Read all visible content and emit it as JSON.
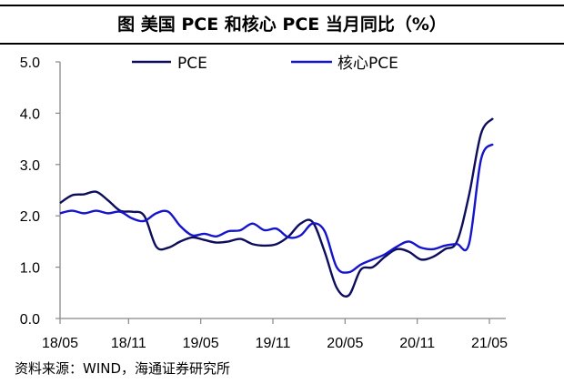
{
  "title": "图  美国 PCE 和核心 PCE 当月同比（%）",
  "source": "资料来源：WIND，海通证券研究所",
  "chart_data": {
    "type": "line",
    "title": "图  美国 PCE 和核心 PCE 当月同比（%）",
    "xlabel": "",
    "ylabel": "",
    "ylim": [
      0,
      5
    ],
    "yticks": [
      "0.0",
      "1.0",
      "2.0",
      "3.0",
      "4.0",
      "5.0"
    ],
    "xticks": [
      "18/05",
      "18/11",
      "19/05",
      "19/11",
      "20/05",
      "20/11",
      "21/05"
    ],
    "grid": false,
    "legend": "top",
    "x": [
      "18/05",
      "18/06",
      "18/07",
      "18/08",
      "18/09",
      "18/10",
      "18/11",
      "18/12",
      "19/01",
      "19/02",
      "19/03",
      "19/04",
      "19/05",
      "19/06",
      "19/07",
      "19/08",
      "19/09",
      "19/10",
      "19/11",
      "19/12",
      "20/01",
      "20/02",
      "20/03",
      "20/04",
      "20/05",
      "20/06",
      "20/07",
      "20/08",
      "20/09",
      "20/10",
      "20/11",
      "20/12",
      "21/01",
      "21/02",
      "21/03",
      "21/04",
      "21/05"
    ],
    "series": [
      {
        "name": "PCE",
        "color": "#0d0d5c",
        "values": [
          2.25,
          2.4,
          2.42,
          2.47,
          2.3,
          2.1,
          2.08,
          2.0,
          1.4,
          1.38,
          1.5,
          1.58,
          1.53,
          1.48,
          1.5,
          1.55,
          1.45,
          1.42,
          1.45,
          1.6,
          1.85,
          1.88,
          1.3,
          0.6,
          0.45,
          0.95,
          1.0,
          1.2,
          1.35,
          1.3,
          1.15,
          1.2,
          1.35,
          1.5,
          2.4,
          3.6,
          3.9
        ]
      },
      {
        "name": "核心PCE",
        "color": "#1414cc",
        "values": [
          2.05,
          2.1,
          2.05,
          2.1,
          2.05,
          2.08,
          1.95,
          1.9,
          2.05,
          2.08,
          1.8,
          1.62,
          1.65,
          1.6,
          1.7,
          1.72,
          1.85,
          1.72,
          1.75,
          1.58,
          1.62,
          1.85,
          1.7,
          1.0,
          0.9,
          1.05,
          1.15,
          1.25,
          1.4,
          1.5,
          1.38,
          1.35,
          1.42,
          1.45,
          1.45,
          3.1,
          3.4
        ]
      }
    ]
  }
}
